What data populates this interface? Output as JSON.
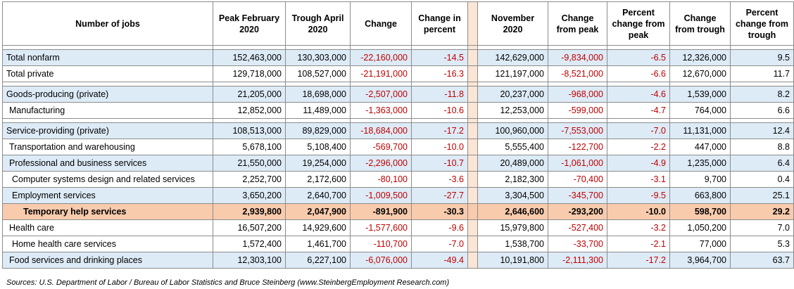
{
  "headers": [
    "Number of jobs",
    "Peak February 2020",
    "Trough April 2020",
    "Change",
    "Change in percent",
    "",
    "November 2020",
    "Change from peak",
    "Percent change from peak",
    "Change from trough",
    "Percent change from trough"
  ],
  "rows": [
    {
      "label": "Total nonfarm",
      "peak": "152,463,000",
      "trough": "130,303,000",
      "change": "-22,160,000",
      "change_pct": "-14.5",
      "nov": "142,629,000",
      "chg_peak": "-9,834,000",
      "pct_peak": "-6.5",
      "chg_trough": "12,326,000",
      "pct_trough": "9.5"
    },
    {
      "label": "Total private",
      "peak": "129,718,000",
      "trough": "108,527,000",
      "change": "-21,191,000",
      "change_pct": "-16.3",
      "nov": "121,197,000",
      "chg_peak": "-8,521,000",
      "pct_peak": "-6.6",
      "chg_trough": "12,670,000",
      "pct_trough": "11.7"
    },
    {
      "label": "Goods-producing (private)",
      "peak": "21,205,000",
      "trough": "18,698,000",
      "change": "-2,507,000",
      "change_pct": "-11.8",
      "nov": "20,237,000",
      "chg_peak": "-968,000",
      "pct_peak": "-4.6",
      "chg_trough": "1,539,000",
      "pct_trough": "8.2"
    },
    {
      "label": "Manufacturing",
      "peak": "12,852,000",
      "trough": "11,489,000",
      "change": "-1,363,000",
      "change_pct": "-10.6",
      "nov": "12,253,000",
      "chg_peak": "-599,000",
      "pct_peak": "-4.7",
      "chg_trough": "764,000",
      "pct_trough": "6.6"
    },
    {
      "label": "Service-providing (private)",
      "peak": "108,513,000",
      "trough": "89,829,000",
      "change": "-18,684,000",
      "change_pct": "-17.2",
      "nov": "100,960,000",
      "chg_peak": "-7,553,000",
      "pct_peak": "-7.0",
      "chg_trough": "11,131,000",
      "pct_trough": "12.4"
    },
    {
      "label": "Transportation and warehousing",
      "peak": "5,678,100",
      "trough": "5,108,400",
      "change": "-569,700",
      "change_pct": "-10.0",
      "nov": "5,555,400",
      "chg_peak": "-122,700",
      "pct_peak": "-2.2",
      "chg_trough": "447,000",
      "pct_trough": "8.8"
    },
    {
      "label": "Professional and business services",
      "peak": "21,550,000",
      "trough": "19,254,000",
      "change": "-2,296,000",
      "change_pct": "-10.7",
      "nov": "20,489,000",
      "chg_peak": "-1,061,000",
      "pct_peak": "-4.9",
      "chg_trough": "1,235,000",
      "pct_trough": "6.4"
    },
    {
      "label": "Computer systems design and related services",
      "peak": "2,252,700",
      "trough": "2,172,600",
      "change": "-80,100",
      "change_pct": "-3.6",
      "nov": "2,182,300",
      "chg_peak": "-70,400",
      "pct_peak": "-3.1",
      "chg_trough": "9,700",
      "pct_trough": "0.4"
    },
    {
      "label": "Employment services",
      "peak": "3,650,200",
      "trough": "2,640,700",
      "change": "-1,009,500",
      "change_pct": "-27.7",
      "nov": "3,304,500",
      "chg_peak": "-345,700",
      "pct_peak": "-9.5",
      "chg_trough": "663,800",
      "pct_trough": "25.1"
    },
    {
      "label": "Temporary help services",
      "peak": "2,939,800",
      "trough": "2,047,900",
      "change": "-891,900",
      "change_pct": "-30.3",
      "nov": "2,646,600",
      "chg_peak": "-293,200",
      "pct_peak": "-10.0",
      "chg_trough": "598,700",
      "pct_trough": "29.2"
    },
    {
      "label": "Health care",
      "peak": "16,507,200",
      "trough": "14,929,600",
      "change": "-1,577,600",
      "change_pct": "-9.6",
      "nov": "15,979,800",
      "chg_peak": "-527,400",
      "pct_peak": "-3.2",
      "chg_trough": "1,050,200",
      "pct_trough": "7.0"
    },
    {
      "label": "Home health care services",
      "peak": "1,572,400",
      "trough": "1,461,700",
      "change": "-110,700",
      "change_pct": "-7.0",
      "nov": "1,538,700",
      "chg_peak": "-33,700",
      "pct_peak": "-2.1",
      "chg_trough": "77,000",
      "pct_trough": "5.3"
    },
    {
      "label": "Food services and drinking places",
      "peak": "12,303,100",
      "trough": "6,227,100",
      "change": "-6,076,000",
      "change_pct": "-49.4",
      "nov": "10,191,800",
      "chg_peak": "-2,111,300",
      "pct_peak": "-17.2",
      "chg_trough": "3,964,700",
      "pct_trough": "63.7"
    }
  ],
  "source": "Sources: U.S. Department of Labor / Bureau of Labor Statistics and Bruce Steinberg (www.SteinbergEmployment Research.com)",
  "colors": {
    "row_band": "#ddebf7",
    "highlight": "#f8cbad",
    "gap_column": "#fbe5d6",
    "negative": "#c00000"
  }
}
